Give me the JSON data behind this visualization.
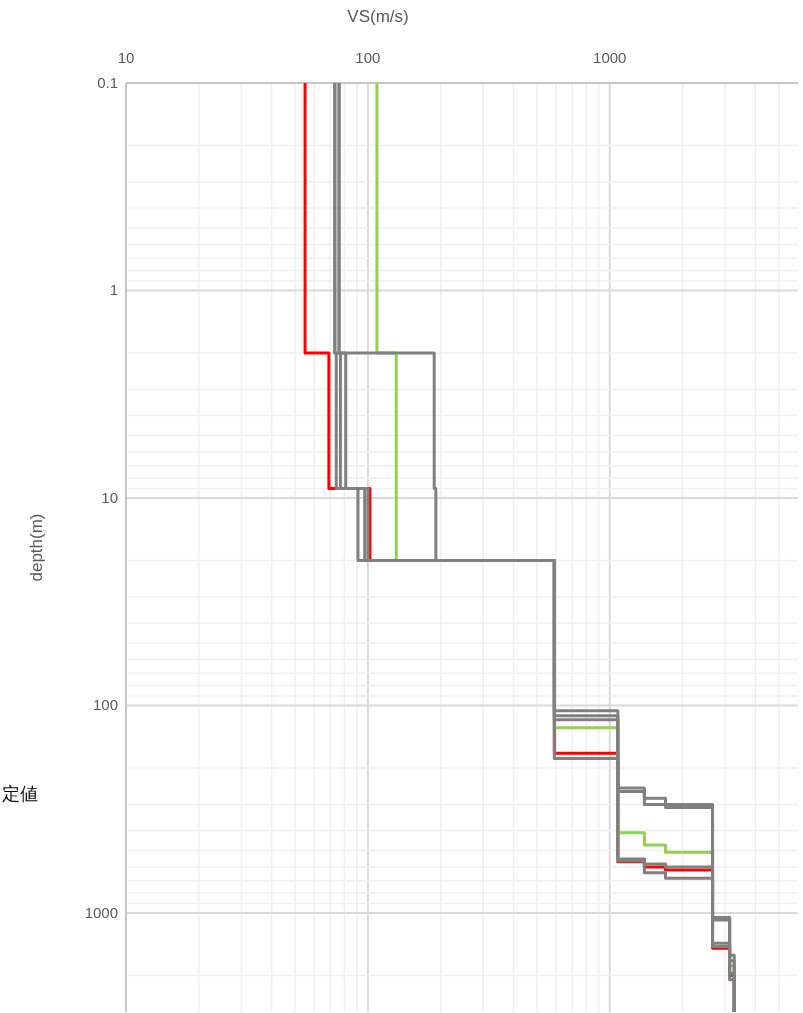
{
  "chart_data": {
    "type": "line",
    "xlabel": "VS(m/s)",
    "ylabel": "depth(m)",
    "log": "xy",
    "grid": true,
    "line_style": "solid",
    "marker": "none",
    "xlim": [
      10,
      6000
    ],
    "ylim": [
      3000,
      0.1
    ],
    "xticks": [
      10,
      {
        "value": 20,
        "label": null
      },
      {
        "value": 30,
        "label": null
      },
      {
        "value": 40,
        "label": null
      },
      {
        "value": 50,
        "label": null
      },
      {
        "value": 60,
        "label": null
      },
      {
        "value": 70,
        "label": null
      },
      {
        "value": 80,
        "label": null
      },
      {
        "value": 90,
        "label": null
      },
      100,
      {
        "value": 200,
        "label": null
      },
      {
        "value": 300,
        "label": null
      },
      {
        "value": 400,
        "label": null
      },
      {
        "value": 500,
        "label": null
      },
      {
        "value": 600,
        "label": null
      },
      {
        "value": 700,
        "label": null
      },
      {
        "value": 800,
        "label": null
      },
      {
        "value": 900,
        "label": null
      },
      1000,
      {
        "value": 2000,
        "label": null
      },
      {
        "value": 3000,
        "label": null
      },
      {
        "value": 4000,
        "label": null
      },
      {
        "value": 5000,
        "label": null
      }
    ],
    "yticks": [
      0.1,
      {
        "value": 0.2,
        "label": null
      },
      {
        "value": 0.3,
        "label": null
      },
      {
        "value": 0.4,
        "label": null
      },
      {
        "value": 0.5,
        "label": null
      },
      {
        "value": 0.6,
        "label": null
      },
      {
        "value": 0.7,
        "label": null
      },
      {
        "value": 0.8,
        "label": null
      },
      {
        "value": 0.9,
        "label": null
      },
      1,
      {
        "value": 2,
        "label": null
      },
      {
        "value": 3,
        "label": null
      },
      {
        "value": 4,
        "label": null
      },
      {
        "value": 5,
        "label": null
      },
      {
        "value": 6,
        "label": null
      },
      {
        "value": 7,
        "label": null
      },
      {
        "value": 8,
        "label": null
      },
      {
        "value": 9,
        "label": null
      },
      10,
      {
        "value": 20,
        "label": null
      },
      {
        "value": 30,
        "label": null
      },
      {
        "value": 40,
        "label": null
      },
      {
        "value": 50,
        "label": null
      },
      {
        "value": 60,
        "label": null
      },
      {
        "value": 70,
        "label": null
      },
      {
        "value": 80,
        "label": null
      },
      {
        "value": 90,
        "label": null
      },
      100,
      {
        "value": 200,
        "label": null
      },
      {
        "value": 300,
        "label": null
      },
      {
        "value": 400,
        "label": null
      },
      {
        "value": 500,
        "label": null
      },
      {
        "value": 600,
        "label": null
      },
      {
        "value": 700,
        "label": null
      },
      {
        "value": 800,
        "label": null
      },
      {
        "value": 900,
        "label": null
      },
      1000,
      {
        "value": 2000,
        "label": null
      }
    ],
    "annotations": [
      "定値"
    ],
    "series": [
      {
        "color": "#ff0000",
        "x": [
          55,
          55,
          69,
          69,
          102,
          102,
          590,
          590,
          1080,
          1080,
          1390,
          1390,
          1700,
          1700,
          2660,
          2660,
          3130,
          3130,
          3270,
          3270
        ],
        "values": [
          0.1,
          2,
          2,
          9,
          9,
          20,
          20,
          170,
          170,
          567,
          567,
          600,
          600,
          620,
          620,
          1480,
          1480,
          2000,
          2000,
          3000
        ]
      },
      {
        "color": "#92d050",
        "x": [
          109,
          109,
          131,
          131,
          590,
          590,
          1080,
          1080,
          1390,
          1390,
          1700,
          1700,
          2660,
          2660,
          3130,
          3130,
          3270,
          3270
        ],
        "values": [
          0.1,
          2,
          2,
          20,
          20,
          128,
          128,
          411,
          411,
          470,
          470,
          509,
          509,
          1050,
          1050,
          1800,
          1800,
          3000
        ]
      },
      {
        "color": "#808080",
        "x": [
          76,
          76,
          188,
          188,
          191,
          191,
          590,
          590,
          1080,
          1080,
          1390,
          1390,
          1700,
          1700,
          2660,
          2660,
          3130,
          3130,
          3270,
          3270
        ],
        "values": [
          0.1,
          2,
          2,
          9,
          9,
          20,
          20,
          106,
          106,
          250,
          250,
          280,
          280,
          300,
          300,
          1080,
          1080,
          1700,
          1700,
          3000
        ]
      },
      {
        "color": "#808080",
        "x": [
          73,
          73,
          74,
          74,
          91,
          91,
          590,
          590,
          1080,
          1080,
          1390,
          1390,
          1700,
          1700,
          2660,
          2660,
          3130,
          3130,
          3270,
          3270
        ],
        "values": [
          0.1,
          2,
          2,
          9,
          9,
          20,
          20,
          180,
          180,
          560,
          560,
          640,
          640,
          680,
          680,
          1400,
          1400,
          2100,
          2100,
          3000
        ]
      },
      {
        "color": "#808080",
        "x": [
          76,
          76,
          81,
          81,
          97,
          97,
          590,
          590,
          1080,
          1080,
          1390,
          1390,
          1700,
          1700,
          2660,
          2660,
          3130,
          3130,
          3270,
          3270
        ],
        "values": [
          0.1,
          2,
          2,
          9,
          9,
          20,
          20,
          117,
          117,
          260,
          260,
          300,
          300,
          310,
          310,
          1450,
          1450,
          1950,
          1950,
          3000
        ]
      },
      {
        "color": "#808080",
        "x": [
          73,
          73,
          77,
          77,
          100,
          100,
          590,
          590,
          1080,
          1080,
          1390,
          1390,
          1700,
          1700,
          2660,
          2660,
          3130,
          3130,
          3270,
          3270
        ],
        "values": [
          0.1,
          2,
          2,
          9,
          9,
          20,
          20,
          112,
          112,
          550,
          550,
          580,
          580,
          600,
          600,
          1050,
          1050,
          1600,
          1600,
          3000
        ]
      }
    ]
  }
}
